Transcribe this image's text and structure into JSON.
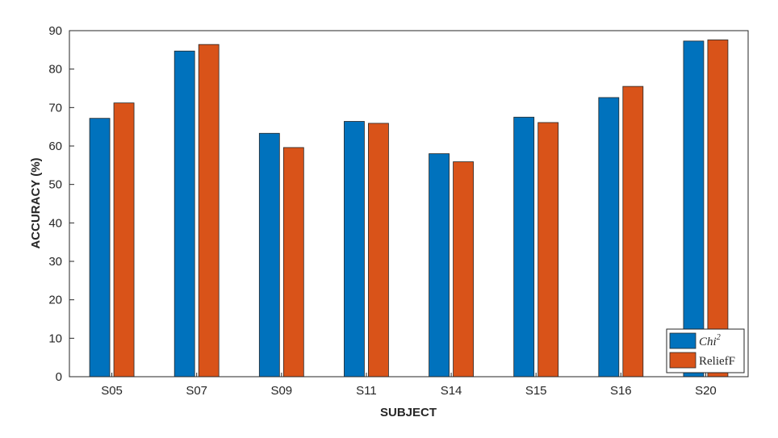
{
  "chart_data": {
    "type": "bar",
    "categories": [
      "S05",
      "S07",
      "S09",
      "S11",
      "S14",
      "S15",
      "S16",
      "S20"
    ],
    "series": [
      {
        "name": "Chi",
        "superscript": "2",
        "color": "#0072BD",
        "values": [
          67.2,
          84.7,
          63.3,
          66.4,
          58.0,
          67.5,
          72.6,
          87.3
        ]
      },
      {
        "name": "ReliefF",
        "color": "#D95319",
        "values": [
          71.2,
          86.4,
          59.6,
          65.9,
          55.9,
          66.1,
          75.5,
          87.6
        ]
      }
    ],
    "xlabel": "SUBJECT",
    "ylabel": "ACCURACY (%)",
    "ylim": [
      0,
      90
    ],
    "yticks": [
      0,
      10,
      20,
      30,
      40,
      50,
      60,
      70,
      80,
      90
    ],
    "grid": false,
    "legend_position": "bottom-right"
  }
}
